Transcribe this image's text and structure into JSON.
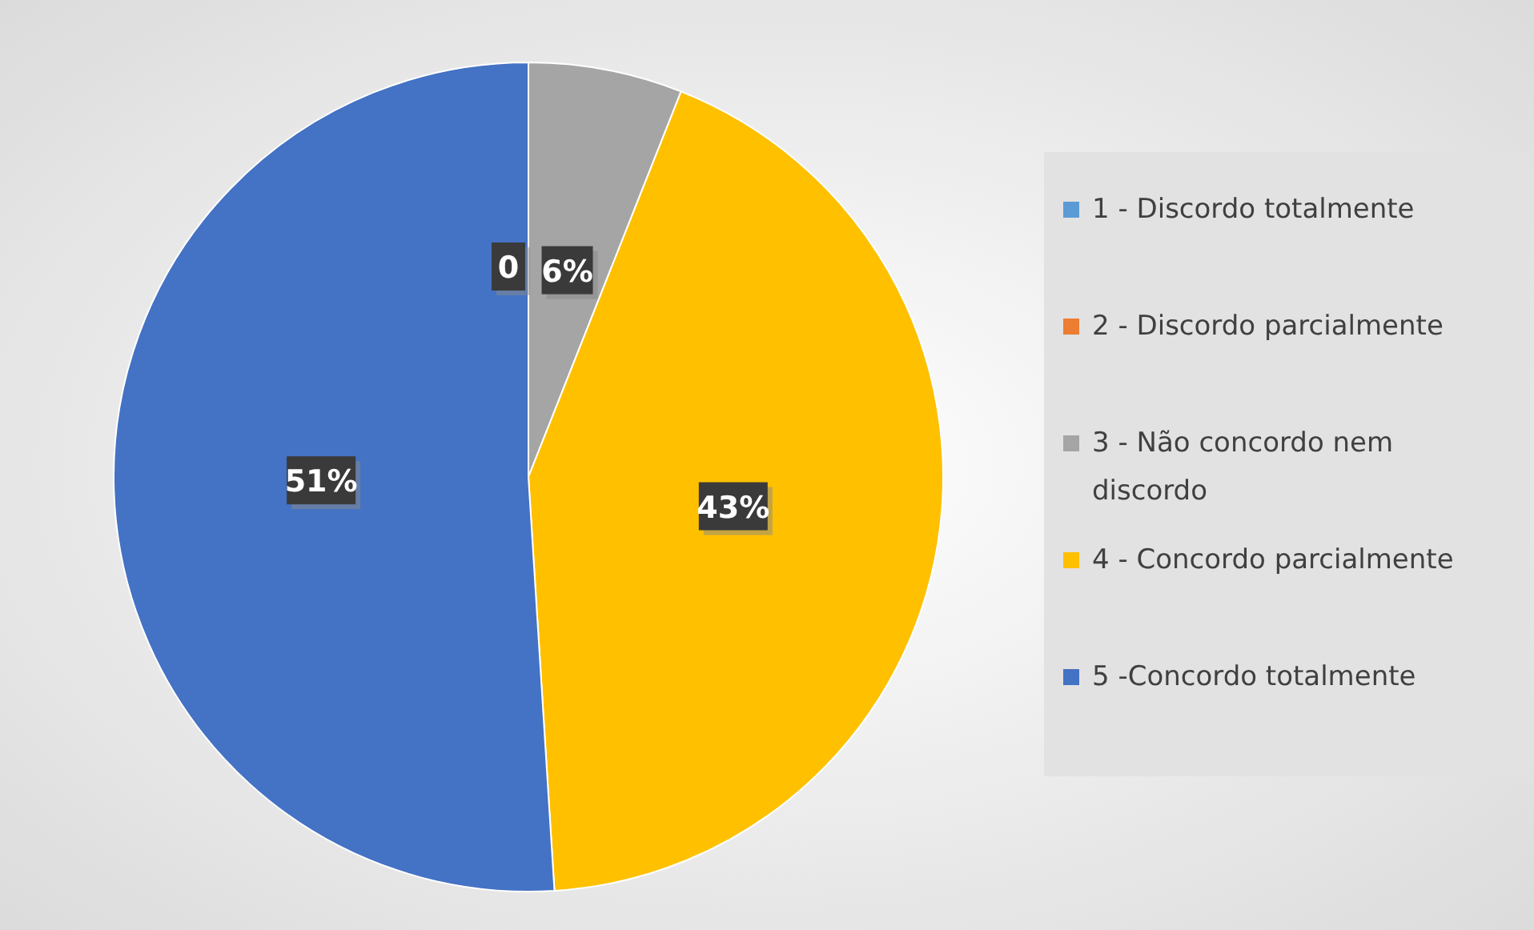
{
  "chart_data": {
    "type": "pie",
    "categories": [
      "1 - Discordo totalmente",
      "2 - Discordo parcialmente",
      "3 - Não concordo nem discordo",
      "4 - Concordo parcialmente",
      "5 -Concordo totalmente"
    ],
    "values": [
      0,
      0,
      6,
      43,
      51
    ],
    "colors": [
      "#5b9bd5",
      "#ed7d31",
      "#a5a5a5",
      "#ffc000",
      "#4472c4"
    ],
    "value_labels": [
      "0",
      null,
      "6%",
      "43%",
      "51%"
    ],
    "legend": "right"
  }
}
